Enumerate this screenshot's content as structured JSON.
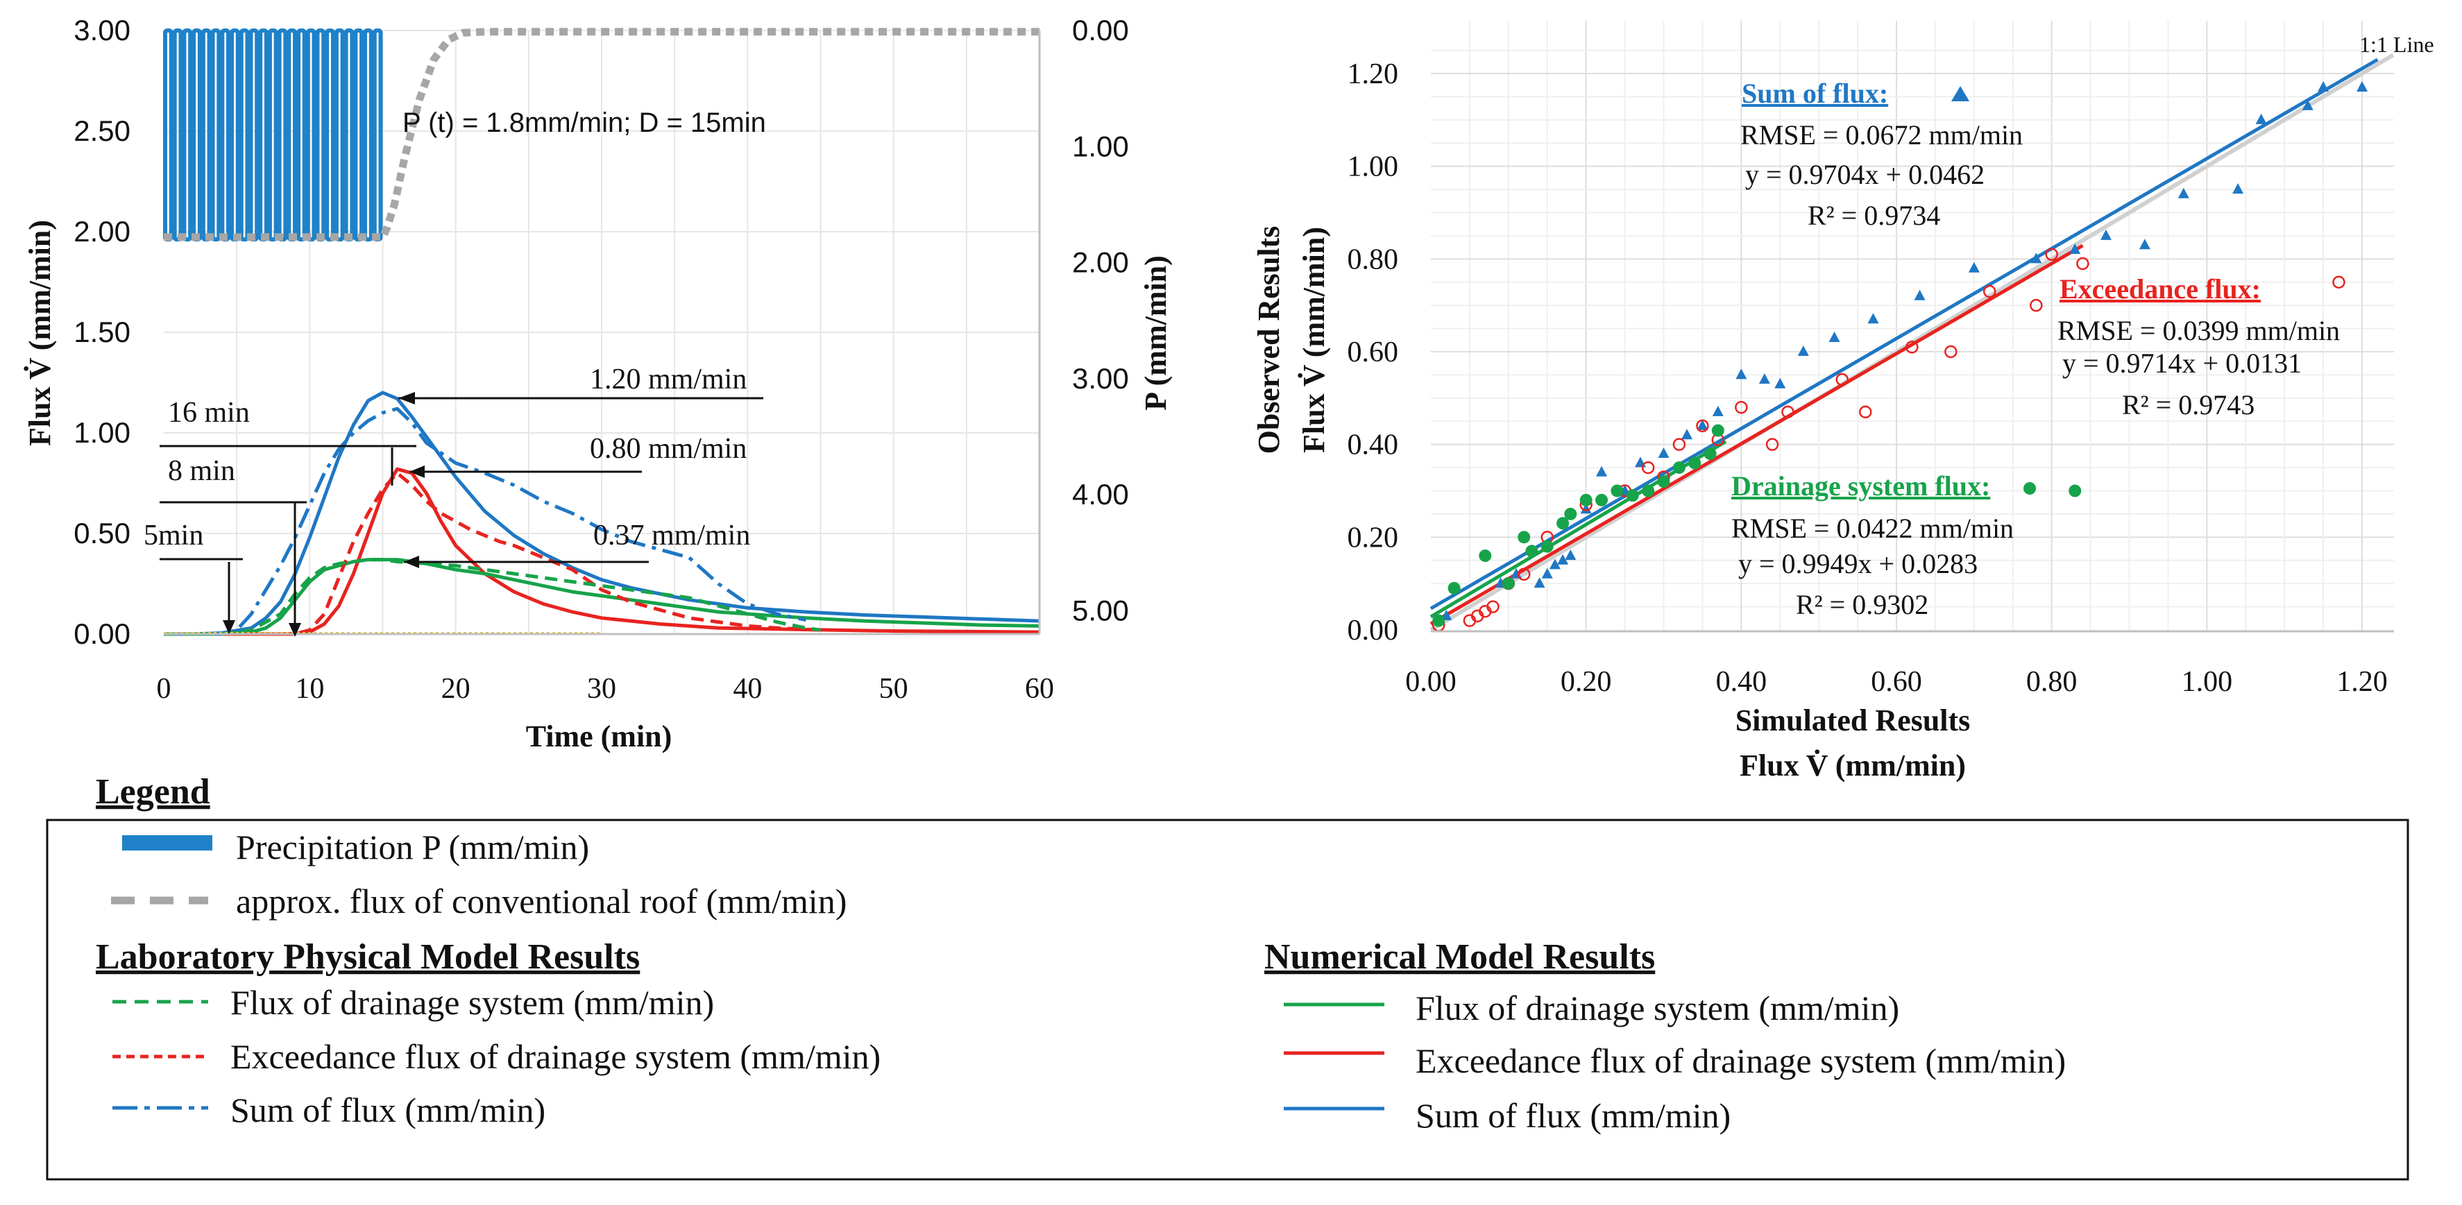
{
  "colors": {
    "blue": "#1f77c4",
    "precip": "#1f82c8",
    "red": "#e8231f",
    "green": "#17a34a",
    "gray": "#a6a6a6",
    "grid": "#e6e6e6",
    "black": "#111111",
    "yellow": "#e8c23a"
  },
  "chart_data": [
    {
      "type": "line",
      "name": "hydrograph",
      "xlabel": "Time (min)",
      "ylabel_left": "Flux V̇ (mm/min)",
      "ylabel_right": "P (mm/min)",
      "xlim": [
        0,
        60
      ],
      "ylim_left": [
        0,
        3
      ],
      "ylim_right_inverted": [
        0,
        5.2
      ],
      "x_ticks": [
        "0",
        "10",
        "20",
        "30",
        "40",
        "50",
        "60"
      ],
      "y_left_ticks": [
        "0.00",
        "0.50",
        "1.00",
        "1.50",
        "2.00",
        "2.50",
        "3.00"
      ],
      "y_right_ticks": [
        "0.00",
        "1.00",
        "2.00",
        "3.00",
        "4.00",
        "5.00"
      ],
      "precip_label": "P (t) = 1.8mm/min; D = 15min",
      "precipitation": {
        "start": 0,
        "end": 15,
        "value": 1.8
      },
      "series": [
        {
          "name": "Numerical – Sum of flux",
          "style": "solid",
          "color": "blue",
          "x": [
            0,
            2,
            4,
            6,
            7,
            8,
            9,
            10,
            11,
            12,
            13,
            14,
            15,
            16,
            17,
            18,
            20,
            22,
            24,
            26,
            28,
            30,
            32,
            34,
            36,
            38,
            40,
            44,
            48,
            52,
            56,
            60
          ],
          "y": [
            0,
            0,
            0.005,
            0.03,
            0.08,
            0.16,
            0.3,
            0.48,
            0.68,
            0.88,
            1.04,
            1.16,
            1.2,
            1.17,
            1.08,
            0.98,
            0.78,
            0.61,
            0.49,
            0.4,
            0.33,
            0.27,
            0.23,
            0.2,
            0.17,
            0.15,
            0.13,
            0.11,
            0.095,
            0.085,
            0.075,
            0.065
          ]
        },
        {
          "name": "Numerical – Exceedance flux",
          "style": "solid",
          "color": "red",
          "x": [
            0,
            8,
            9,
            10,
            11,
            12,
            13,
            14,
            15,
            16,
            17,
            18,
            19,
            20,
            22,
            24,
            26,
            28,
            30,
            34,
            38,
            42,
            46,
            50,
            60
          ],
          "y": [
            0,
            0,
            0.002,
            0.01,
            0.05,
            0.14,
            0.3,
            0.5,
            0.7,
            0.82,
            0.8,
            0.7,
            0.56,
            0.44,
            0.3,
            0.21,
            0.15,
            0.11,
            0.08,
            0.05,
            0.03,
            0.025,
            0.02,
            0.015,
            0.01
          ]
        },
        {
          "name": "Numerical – Drainage flux",
          "style": "solid",
          "color": "green",
          "x": [
            0,
            4,
            6,
            7,
            8,
            9,
            10,
            11,
            12,
            13,
            14,
            15,
            16,
            17,
            18,
            20,
            22,
            24,
            26,
            28,
            30,
            32,
            34,
            36,
            38,
            40,
            44,
            48,
            52,
            56,
            60
          ],
          "y": [
            0,
            0,
            0.01,
            0.03,
            0.08,
            0.17,
            0.26,
            0.32,
            0.34,
            0.36,
            0.37,
            0.37,
            0.37,
            0.36,
            0.35,
            0.32,
            0.3,
            0.27,
            0.24,
            0.21,
            0.19,
            0.17,
            0.15,
            0.13,
            0.11,
            0.1,
            0.08,
            0.065,
            0.055,
            0.045,
            0.04
          ]
        },
        {
          "name": "Laboratory – Sum of flux",
          "style": "dashdot",
          "color": "blue",
          "x": [
            0,
            4,
            5,
            6,
            7,
            8,
            9,
            10,
            11,
            12,
            13,
            14,
            15,
            16,
            17,
            18,
            20,
            22,
            24,
            26,
            28,
            30,
            32,
            34,
            36,
            38,
            40,
            42,
            44
          ],
          "y": [
            0,
            0,
            0.02,
            0.1,
            0.22,
            0.34,
            0.48,
            0.64,
            0.8,
            0.92,
            1.0,
            1.06,
            1.1,
            1.12,
            1.05,
            0.95,
            0.85,
            0.8,
            0.74,
            0.66,
            0.6,
            0.52,
            0.46,
            0.42,
            0.38,
            0.25,
            0.15,
            0.1,
            0.07
          ]
        },
        {
          "name": "Laboratory – Exceedance flux",
          "style": "dashed",
          "color": "red",
          "x": [
            0,
            9,
            10,
            11,
            12,
            13,
            14,
            15,
            16,
            17,
            18,
            19,
            20,
            21,
            22,
            23,
            24,
            26,
            28,
            30,
            32,
            34,
            36,
            38,
            40,
            42,
            45
          ],
          "y": [
            0,
            0,
            0.02,
            0.1,
            0.28,
            0.46,
            0.6,
            0.72,
            0.8,
            0.74,
            0.66,
            0.6,
            0.56,
            0.52,
            0.49,
            0.46,
            0.44,
            0.38,
            0.32,
            0.22,
            0.16,
            0.12,
            0.08,
            0.06,
            0.04,
            0.03,
            0.02
          ]
        },
        {
          "name": "Laboratory – Drainage flux",
          "style": "dashed",
          "color": "green",
          "x": [
            0,
            4,
            6,
            8,
            9,
            10,
            11,
            12,
            13,
            14,
            15,
            16,
            18,
            20,
            22,
            24,
            26,
            28,
            30,
            32,
            34,
            36,
            38,
            40,
            42,
            44,
            45
          ],
          "y": [
            0,
            0,
            0.02,
            0.1,
            0.2,
            0.28,
            0.33,
            0.35,
            0.36,
            0.37,
            0.37,
            0.36,
            0.35,
            0.34,
            0.32,
            0.3,
            0.28,
            0.26,
            0.24,
            0.22,
            0.2,
            0.18,
            0.14,
            0.1,
            0.06,
            0.03,
            0.02
          ]
        },
        {
          "name": "Approx. flux of conventional roof",
          "style": "dotted",
          "color": "gray",
          "axis": "right",
          "x": [
            0,
            15,
            15.3,
            15.8,
            16.5,
            17.5,
            18.5,
            19.5,
            20.5,
            22,
            30,
            40,
            50,
            60
          ],
          "y": [
            1.78,
            1.78,
            1.7,
            1.5,
            1.1,
            0.6,
            0.25,
            0.08,
            0.02,
            0.01,
            0.01,
            0.01,
            0.01,
            0.01
          ]
        }
      ],
      "annotations": {
        "peak_sum": "1.20 mm/min",
        "peak_exceed": "0.80 mm/min",
        "peak_drain": "0.37 mm/min",
        "lag_16": "16 min",
        "lag_8": "8 min",
        "lag_5": "5min"
      }
    },
    {
      "type": "scatter",
      "name": "validation",
      "xlabel_line1": "Simulated Results",
      "xlabel_line2": "Flux V̇ (mm/min)",
      "ylabel_line1": "Observed Results",
      "ylabel_line2": "Flux V̇ (mm/min)",
      "xlim": [
        0,
        1.25
      ],
      "ylim": [
        0,
        1.25
      ],
      "x_ticks": [
        "0.00",
        "0.20",
        "0.40",
        "0.60",
        "0.80",
        "1.00",
        "1.20"
      ],
      "y_ticks": [
        "0.00",
        "0.20",
        "0.40",
        "0.60",
        "0.80",
        "1.00",
        "1.20"
      ],
      "one_to_one_label": "1:1 Line",
      "series": [
        {
          "name": "Sum of flux",
          "marker": "triangle",
          "color": "blue",
          "slope": 0.9704,
          "intercept": 0.0462,
          "x": [
            0.02,
            0.09,
            0.11,
            0.14,
            0.15,
            0.16,
            0.17,
            0.18,
            0.2,
            0.22,
            0.25,
            0.27,
            0.3,
            0.33,
            0.35,
            0.37,
            0.4,
            0.43,
            0.45,
            0.48,
            0.52,
            0.57,
            0.63,
            0.7,
            0.78,
            0.83,
            0.87,
            0.92,
            0.97,
            1.04,
            1.07,
            1.13,
            1.15,
            1.2
          ],
          "y": [
            0.03,
            0.1,
            0.12,
            0.1,
            0.12,
            0.14,
            0.15,
            0.16,
            0.26,
            0.34,
            0.3,
            0.36,
            0.38,
            0.42,
            0.44,
            0.47,
            0.55,
            0.54,
            0.53,
            0.6,
            0.63,
            0.67,
            0.72,
            0.78,
            0.8,
            0.82,
            0.85,
            0.83,
            0.94,
            0.95,
            1.1,
            1.13,
            1.17,
            1.17
          ]
        },
        {
          "name": "Exceedance flux",
          "marker": "circle-open",
          "color": "red",
          "slope": 0.9714,
          "intercept": 0.0131,
          "x": [
            0.01,
            0.05,
            0.06,
            0.07,
            0.08,
            0.1,
            0.12,
            0.15,
            0.2,
            0.25,
            0.28,
            0.3,
            0.32,
            0.35,
            0.37,
            0.4,
            0.44,
            0.46,
            0.53,
            0.56,
            0.62,
            0.67,
            0.72,
            0.78,
            0.8,
            0.84,
            1.17
          ],
          "y": [
            0.01,
            0.02,
            0.03,
            0.04,
            0.05,
            0.1,
            0.12,
            0.2,
            0.27,
            0.3,
            0.35,
            0.33,
            0.4,
            0.44,
            0.41,
            0.48,
            0.4,
            0.47,
            0.54,
            0.47,
            0.61,
            0.6,
            0.73,
            0.7,
            0.81,
            0.79,
            0.75
          ]
        },
        {
          "name": "Drainage system flux",
          "marker": "circle",
          "color": "green",
          "slope": 0.9949,
          "intercept": 0.0283,
          "x": [
            0.01,
            0.03,
            0.07,
            0.1,
            0.12,
            0.13,
            0.15,
            0.17,
            0.18,
            0.2,
            0.22,
            0.24,
            0.26,
            0.28,
            0.3,
            0.32,
            0.34,
            0.36,
            0.37,
            0.83
          ],
          "y": [
            0.02,
            0.09,
            0.16,
            0.1,
            0.2,
            0.17,
            0.18,
            0.23,
            0.25,
            0.28,
            0.28,
            0.3,
            0.29,
            0.3,
            0.32,
            0.35,
            0.36,
            0.38,
            0.43,
            0.3
          ]
        }
      ],
      "stats": {
        "sum": {
          "title": "Sum of flux:",
          "rmse": "RMSE = 0.0672 mm/min",
          "eq": "y = 0.9704x + 0.0462",
          "r2": "R² = 0.9734"
        },
        "exceed": {
          "title": "Exceedance flux:",
          "rmse": "RMSE = 0.0399 mm/min",
          "eq": "y = 0.9714x + 0.0131",
          "r2": "R² = 0.9743"
        },
        "drain": {
          "title": "Drainage system flux:",
          "rmse": "RMSE = 0.0422 mm/min",
          "eq": "y = 0.9949x + 0.0283",
          "r2": "R² = 0.9302"
        }
      }
    }
  ],
  "legend": {
    "title": "Legend",
    "precip": "Precipitation P (mm/min)",
    "conventional": "approx. flux of conventional roof (mm/min)",
    "lab_title": "Laboratory Physical Model Results",
    "num_title": "Numerical Model Results",
    "lab_items": [
      "Flux of drainage system (mm/min)",
      "Exceedance flux of drainage system (mm/min)",
      "Sum of flux (mm/min)"
    ],
    "num_items": [
      "Flux of drainage system (mm/min)",
      "Exceedance flux of drainage system (mm/min)",
      "Sum of flux (mm/min)"
    ]
  }
}
